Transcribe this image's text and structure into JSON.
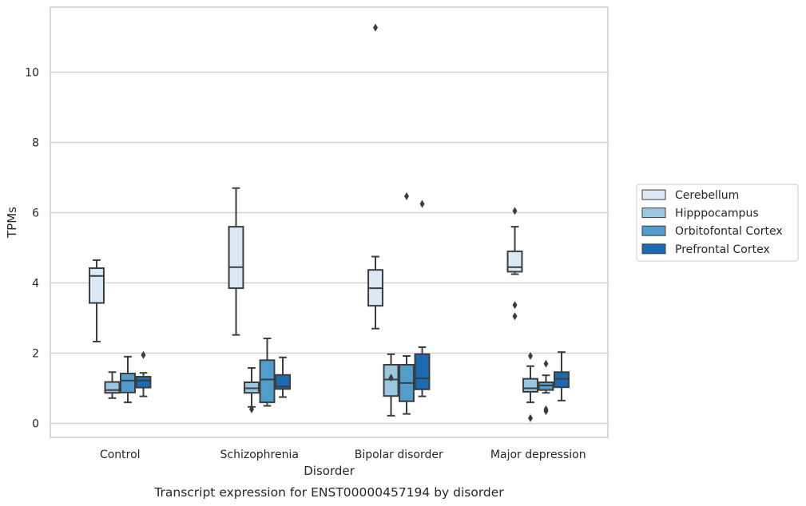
{
  "chart_data": {
    "type": "box",
    "caption": "Transcript expression for ENST00000457194 by disorder",
    "xlabel": "Disorder",
    "ylabel": "TPMs",
    "ylim": [
      -0.35,
      11.9
    ],
    "yticks": [
      0,
      2,
      4,
      6,
      8,
      10
    ],
    "grid": "horizontal",
    "legend_position": "right",
    "categories": [
      "Control",
      "Schizophrenia",
      "Bipolar disorder",
      "Major depression"
    ],
    "series": [
      {
        "name": "Cerebellum",
        "color": "#dbe9f6",
        "boxes": [
          {
            "whisker_low": 2.33,
            "q1": 3.43,
            "median": 4.2,
            "q3": 4.42,
            "whisker_high": 4.65,
            "outliers": []
          },
          {
            "whisker_low": 2.52,
            "q1": 3.85,
            "median": 4.45,
            "q3": 5.6,
            "whisker_high": 6.7,
            "outliers": []
          },
          {
            "whisker_low": 2.7,
            "q1": 3.35,
            "median": 3.85,
            "q3": 4.37,
            "whisker_high": 4.75,
            "outliers": [
              11.27
            ]
          },
          {
            "whisker_low": 4.25,
            "q1": 4.32,
            "median": 4.45,
            "q3": 4.9,
            "whisker_high": 5.6,
            "outliers": [
              6.05,
              3.37,
              3.05
            ]
          }
        ]
      },
      {
        "name": "Hipppocampus",
        "color": "#9ac8e0",
        "boxes": [
          {
            "whisker_low": 0.72,
            "q1": 0.87,
            "median": 0.95,
            "q3": 1.18,
            "whisker_high": 1.46,
            "outliers": []
          },
          {
            "whisker_low": 0.47,
            "q1": 0.87,
            "median": 1.0,
            "q3": 1.17,
            "whisker_high": 1.58,
            "outliers": [
              0.4
            ]
          },
          {
            "whisker_low": 0.22,
            "q1": 0.78,
            "median": 1.25,
            "q3": 1.67,
            "whisker_high": 1.97,
            "outliers": [
              1.3
            ]
          },
          {
            "whisker_low": 0.6,
            "q1": 0.9,
            "median": 1.0,
            "q3": 1.27,
            "whisker_high": 1.63,
            "outliers": [
              0.15,
              1.92
            ]
          }
        ]
      },
      {
        "name": "Orbitofontal Cortex",
        "color": "#529dcc",
        "boxes": [
          {
            "whisker_low": 0.6,
            "q1": 0.88,
            "median": 1.22,
            "q3": 1.42,
            "whisker_high": 1.9,
            "outliers": []
          },
          {
            "whisker_low": 0.5,
            "q1": 0.6,
            "median": 1.25,
            "q3": 1.8,
            "whisker_high": 2.42,
            "outliers": []
          },
          {
            "whisker_low": 0.27,
            "q1": 0.63,
            "median": 1.15,
            "q3": 1.67,
            "whisker_high": 1.92,
            "outliers": [
              6.47
            ]
          },
          {
            "whisker_low": 0.87,
            "q1": 0.95,
            "median": 1.08,
            "q3": 1.17,
            "whisker_high": 1.37,
            "outliers": [
              1.7,
              0.4,
              0.35
            ]
          }
        ]
      },
      {
        "name": "Prefrontal Cortex",
        "color": "#1c6aaf",
        "boxes": [
          {
            "whisker_low": 0.77,
            "q1": 1.02,
            "median": 1.22,
            "q3": 1.33,
            "whisker_high": 1.44,
            "outliers": [
              1.95
            ]
          },
          {
            "whisker_low": 0.75,
            "q1": 0.98,
            "median": 1.05,
            "q3": 1.38,
            "whisker_high": 1.88,
            "outliers": []
          },
          {
            "whisker_low": 0.77,
            "q1": 0.97,
            "median": 1.28,
            "q3": 1.97,
            "whisker_high": 2.17,
            "outliers": [
              6.25
            ]
          },
          {
            "whisker_low": 0.65,
            "q1": 1.03,
            "median": 1.27,
            "q3": 1.46,
            "whisker_high": 2.03,
            "outliers": []
          }
        ]
      }
    ]
  }
}
